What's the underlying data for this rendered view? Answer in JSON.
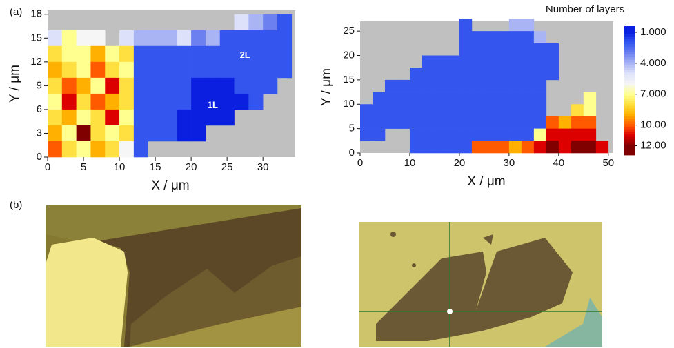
{
  "panel_labels": [
    "(a)",
    "(b)"
  ],
  "chart_data": [
    {
      "type": "heatmap",
      "xlabel": "X / μm",
      "ylabel": "Y / μm",
      "xlim": [
        0,
        34.5
      ],
      "ylim": [
        0,
        18.5
      ],
      "xticks": [
        0,
        5,
        10,
        15,
        20,
        25,
        30
      ],
      "yticks": [
        0,
        3,
        6,
        9,
        12,
        15,
        18
      ],
      "annotations": [
        "1L",
        "2L"
      ],
      "background": "#c0c0c0",
      "x": [
        1,
        3,
        5,
        7,
        9,
        11,
        13,
        15,
        17,
        19,
        21,
        23,
        25,
        27,
        29,
        31,
        33
      ],
      "y": [
        17,
        15,
        13,
        11,
        9,
        7,
        5,
        3,
        1
      ],
      "values": [
        [
          null,
          null,
          null,
          null,
          null,
          null,
          null,
          null,
          null,
          null,
          null,
          null,
          null,
          5,
          4,
          3,
          2
        ],
        [
          5,
          7,
          6,
          6,
          null,
          5,
          4,
          4,
          4,
          5,
          3,
          4,
          2,
          2,
          2,
          2,
          2
        ],
        [
          8,
          7,
          7,
          9,
          7,
          8,
          2,
          2,
          2,
          2,
          2,
          2,
          2,
          2,
          2,
          2,
          2
        ],
        [
          9,
          8,
          7,
          10,
          8,
          7,
          2,
          2,
          2,
          2,
          2,
          2,
          2,
          2,
          2,
          2,
          2
        ],
        [
          8,
          10,
          9,
          7,
          11,
          8,
          2,
          2,
          2,
          2,
          1,
          1,
          1,
          2,
          2,
          2,
          null
        ],
        [
          7,
          11,
          8,
          10,
          9,
          8,
          2,
          2,
          2,
          2,
          1,
          1,
          1,
          1,
          2,
          null,
          null
        ],
        [
          8,
          9,
          7,
          8,
          11,
          7,
          2,
          2,
          2,
          1,
          1,
          1,
          1,
          null,
          null,
          null,
          null
        ],
        [
          9,
          7,
          12,
          8,
          7,
          8,
          2,
          2,
          2,
          1,
          1,
          null,
          null,
          null,
          null,
          null,
          null
        ],
        [
          10,
          8,
          7,
          9,
          8,
          6,
          2,
          null,
          null,
          null,
          null,
          null,
          null,
          null,
          null,
          null,
          null
        ]
      ]
    },
    {
      "type": "heatmap",
      "xlabel": "X / μm",
      "ylabel": "Y / μm",
      "xlim": [
        0,
        51
      ],
      "ylim": [
        0,
        27
      ],
      "xticks": [
        0,
        10,
        20,
        30,
        40,
        50
      ],
      "yticks": [
        0,
        5,
        10,
        15,
        20,
        25
      ],
      "background": "#c0c0c0",
      "x": [
        1.25,
        3.75,
        6.25,
        8.75,
        11.25,
        13.75,
        16.25,
        18.75,
        21.25,
        23.75,
        26.25,
        28.75,
        31.25,
        33.75,
        36.25,
        38.75,
        41.25,
        43.75,
        46.25,
        48.75
      ],
      "y": [
        26.25,
        23.75,
        21.25,
        18.75,
        16.25,
        13.75,
        11.25,
        8.75,
        6.25,
        3.75,
        1.25
      ],
      "values": [
        [
          null,
          null,
          null,
          null,
          null,
          null,
          null,
          null,
          2,
          null,
          null,
          null,
          4,
          4,
          null,
          null,
          null,
          null,
          null,
          null
        ],
        [
          null,
          null,
          null,
          null,
          null,
          null,
          null,
          null,
          2,
          2,
          2,
          2,
          2,
          2,
          4,
          null,
          null,
          null,
          null,
          null
        ],
        [
          null,
          null,
          null,
          null,
          null,
          null,
          null,
          null,
          2,
          2,
          2,
          2,
          2,
          2,
          2,
          2,
          null,
          null,
          null,
          null
        ],
        [
          null,
          null,
          null,
          null,
          null,
          2,
          2,
          2,
          2,
          2,
          2,
          2,
          2,
          2,
          2,
          2,
          null,
          null,
          null,
          null
        ],
        [
          null,
          null,
          null,
          null,
          2,
          2,
          2,
          2,
          2,
          2,
          2,
          2,
          2,
          2,
          2,
          2,
          null,
          null,
          null,
          null
        ],
        [
          null,
          null,
          2,
          2,
          2,
          2,
          2,
          2,
          2,
          2,
          2,
          2,
          2,
          2,
          2,
          null,
          null,
          null,
          null,
          null
        ],
        [
          null,
          2,
          2,
          2,
          2,
          2,
          2,
          2,
          2,
          2,
          2,
          2,
          2,
          2,
          2,
          null,
          null,
          null,
          7,
          null
        ],
        [
          2,
          2,
          2,
          2,
          2,
          2,
          2,
          2,
          2,
          2,
          2,
          2,
          2,
          2,
          2,
          null,
          null,
          8,
          7,
          null
        ],
        [
          2,
          2,
          2,
          2,
          2,
          2,
          2,
          2,
          2,
          2,
          2,
          2,
          2,
          2,
          2,
          10,
          9,
          10,
          10,
          null
        ],
        [
          2,
          2,
          null,
          null,
          2,
          2,
          2,
          2,
          2,
          2,
          2,
          2,
          2,
          2,
          7,
          11,
          11,
          11,
          11,
          null
        ],
        [
          null,
          null,
          null,
          null,
          2,
          2,
          2,
          2,
          2,
          10,
          10,
          10,
          9,
          10,
          11,
          12,
          11,
          12,
          12,
          11
        ]
      ],
      "colorbar": {
        "title": "Number of layers",
        "lim": [
          0.4,
          12.9
        ],
        "ticks": [
          {
            "value": 1,
            "label": "1.000"
          },
          {
            "value": 4,
            "label": "4.000"
          },
          {
            "value": 7,
            "label": "7.000"
          },
          {
            "value": 10,
            "label": "10.00"
          },
          {
            "value": 12,
            "label": "12.00"
          }
        ],
        "stops": [
          [
            1,
            "#0b1fe0"
          ],
          [
            2,
            "#3456ef"
          ],
          [
            3,
            "#6c80f0"
          ],
          [
            4,
            "#a8b4f4"
          ],
          [
            5,
            "#dde2fa"
          ],
          [
            6,
            "#f6f6f6"
          ],
          [
            7,
            "#ffff90"
          ],
          [
            8,
            "#ffe040"
          ],
          [
            9,
            "#ffb000"
          ],
          [
            10,
            "#ff5a00"
          ],
          [
            11,
            "#dd0000"
          ],
          [
            12,
            "#800000"
          ]
        ]
      }
    }
  ]
}
